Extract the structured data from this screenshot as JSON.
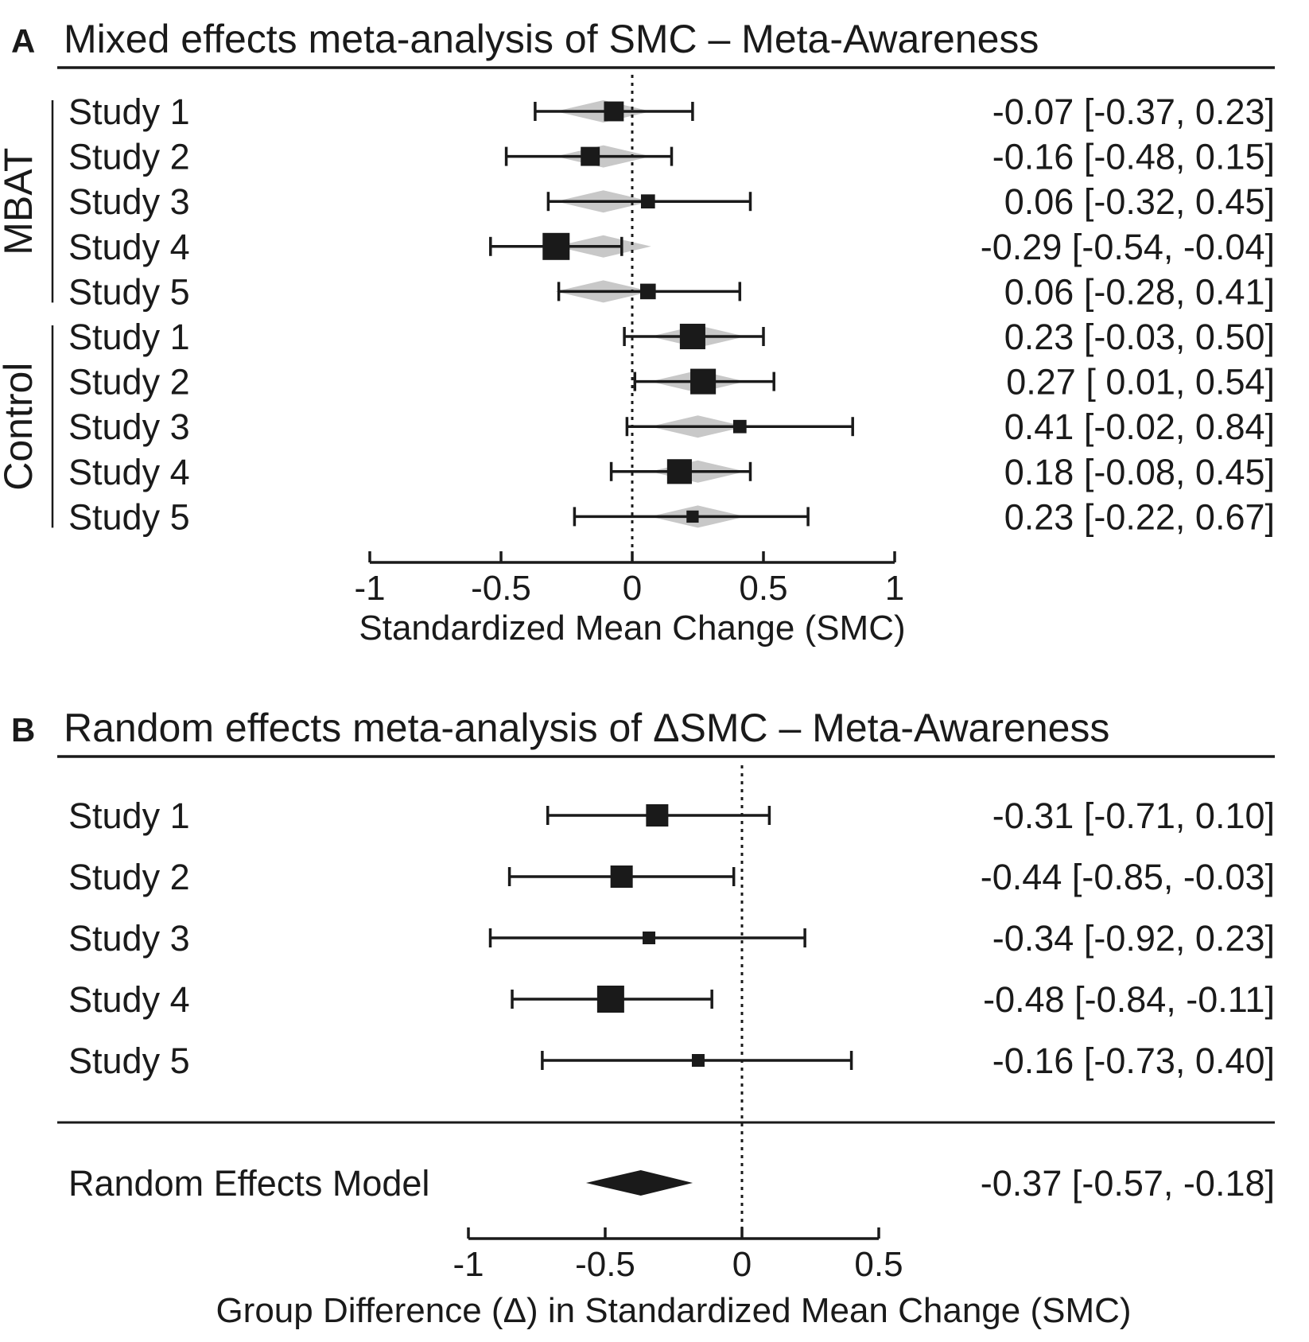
{
  "chart_data": [
    {
      "panel": "A",
      "type": "forest",
      "title": "Mixed effects meta-analysis of SMC – Meta-Awareness",
      "xlabel": "Standardized Mean Change (SMC)",
      "xlim": [
        -1,
        1
      ],
      "xticks": [
        -1,
        -0.5,
        0,
        0.5,
        1
      ],
      "tick_labels": [
        "-1",
        "-0.5",
        "0",
        "0.5",
        "1"
      ],
      "reference_line": 0,
      "groups": [
        {
          "name": "MBAT",
          "studies": [
            {
              "label": "Study 1",
              "est": -0.07,
              "lo": -0.37,
              "hi": 0.23,
              "weight": 0.62,
              "fit": -0.11,
              "ci_text": "-0.07 [-0.37,  0.23]"
            },
            {
              "label": "Study 2",
              "est": -0.16,
              "lo": -0.48,
              "hi": 0.15,
              "weight": 0.58,
              "fit": -0.11,
              "ci_text": "-0.16 [-0.48,  0.15]"
            },
            {
              "label": "Study 3",
              "est": 0.06,
              "lo": -0.32,
              "hi": 0.45,
              "weight": 0.32,
              "fit": -0.11,
              "ci_text": "0.06 [-0.32,  0.45]"
            },
            {
              "label": "Study 4",
              "est": -0.29,
              "lo": -0.54,
              "hi": -0.04,
              "weight": 1.0,
              "fit": -0.11,
              "ci_text": "-0.29 [-0.54, -0.04]"
            },
            {
              "label": "Study 5",
              "est": 0.06,
              "lo": -0.28,
              "hi": 0.41,
              "weight": 0.4,
              "fit": -0.11,
              "ci_text": "0.06 [-0.28,  0.41]"
            }
          ]
        },
        {
          "name": "Control",
          "studies": [
            {
              "label": "Study 1",
              "est": 0.23,
              "lo": -0.03,
              "hi": 0.5,
              "weight": 0.92,
              "fit": 0.25,
              "ci_text": "0.23 [-0.03,  0.50]"
            },
            {
              "label": "Study 2",
              "est": 0.27,
              "lo": 0.01,
              "hi": 0.54,
              "weight": 0.92,
              "fit": 0.25,
              "ci_text": "0.27 [ 0.01,  0.54]"
            },
            {
              "label": "Study 3",
              "est": 0.41,
              "lo": -0.02,
              "hi": 0.84,
              "weight": 0.28,
              "fit": 0.25,
              "ci_text": "0.41 [-0.02,  0.84]"
            },
            {
              "label": "Study 4",
              "est": 0.18,
              "lo": -0.08,
              "hi": 0.45,
              "weight": 0.88,
              "fit": 0.25,
              "ci_text": "0.18 [-0.08,  0.45]"
            },
            {
              "label": "Study 5",
              "est": 0.23,
              "lo": -0.22,
              "hi": 0.67,
              "weight": 0.22,
              "fit": 0.25,
              "ci_text": "0.23 [-0.22,  0.67]"
            }
          ]
        }
      ]
    },
    {
      "panel": "B",
      "type": "forest",
      "title": "Random effects meta-analysis of ΔSMC – Meta-Awareness",
      "xlabel": "Group Difference (Δ) in Standardized Mean Change (SMC)",
      "xlim": [
        -1,
        0.5
      ],
      "xticks": [
        -1,
        -0.5,
        0,
        0.5
      ],
      "tick_labels": [
        "-1",
        "-0.5",
        "0",
        "0.5"
      ],
      "reference_line": 0,
      "studies": [
        {
          "label": "Study 1",
          "est": -0.31,
          "lo": -0.71,
          "hi": 0.1,
          "weight": 0.75,
          "ci_text": "-0.31 [-0.71,  0.10]"
        },
        {
          "label": "Study 2",
          "est": -0.44,
          "lo": -0.85,
          "hi": -0.03,
          "weight": 0.75,
          "ci_text": "-0.44 [-0.85, -0.03]"
        },
        {
          "label": "Study 3",
          "est": -0.34,
          "lo": -0.92,
          "hi": 0.23,
          "weight": 0.25,
          "ci_text": "-0.34 [-0.92,  0.23]"
        },
        {
          "label": "Study 4",
          "est": -0.48,
          "lo": -0.84,
          "hi": -0.11,
          "weight": 1.0,
          "ci_text": "-0.48 [-0.84, -0.11]"
        },
        {
          "label": "Study 5",
          "est": -0.16,
          "lo": -0.73,
          "hi": 0.4,
          "weight": 0.25,
          "ci_text": "-0.16 [-0.73,  0.40]"
        }
      ],
      "summary": {
        "label": "Random Effects Model",
        "est": -0.37,
        "lo": -0.57,
        "hi": -0.18,
        "ci_text": "-0.37 [-0.57, -0.18]"
      }
    }
  ]
}
